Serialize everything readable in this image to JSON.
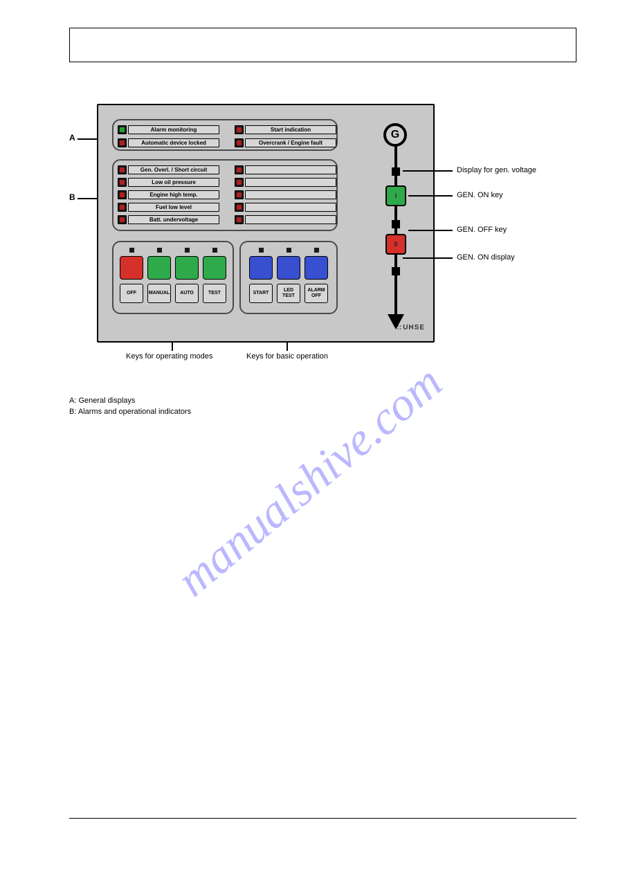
{
  "panel": {
    "section_a": {
      "left": [
        {
          "label": "Alarm monitoring",
          "led": "green"
        },
        {
          "label": "Automatic device locked",
          "led": "red"
        }
      ],
      "right": [
        {
          "label": "Start indication",
          "led": "red"
        },
        {
          "label": "Overcrank / Engine fault",
          "led": "red"
        }
      ]
    },
    "section_b": {
      "left": [
        {
          "label": "Gen. Overl. / Short circuit",
          "led": "red"
        },
        {
          "label": "Low oil pressure",
          "led": "red"
        },
        {
          "label": "Engine high temp.",
          "led": "red"
        },
        {
          "label": "Fuel low level",
          "led": "red"
        },
        {
          "label": "Batt. undervoltage",
          "led": "red"
        }
      ],
      "right": [
        {
          "label": "",
          "led": "red"
        },
        {
          "label": "",
          "led": "red"
        },
        {
          "label": "",
          "led": "red"
        },
        {
          "label": "",
          "led": "red"
        },
        {
          "label": "",
          "led": "red"
        }
      ]
    },
    "mode_keys": [
      {
        "label": "OFF",
        "color": "red"
      },
      {
        "label": "MANUAL",
        "color": "green"
      },
      {
        "label": "AUTO",
        "color": "green"
      },
      {
        "label": "TEST",
        "color": "green"
      }
    ],
    "basic_keys": [
      {
        "label": "START",
        "color": "blue"
      },
      {
        "label": "LED TEST",
        "color": "blue"
      },
      {
        "label": "ALARM OFF",
        "color": "blue"
      }
    ],
    "gen": {
      "head": "G",
      "on_label": "I",
      "off_label": "0"
    },
    "brand": "UHSE"
  },
  "side_labels": {
    "a": "A",
    "b": "B"
  },
  "callouts": {
    "c1": "Display for gen. voltage",
    "c2": "GEN. ON key",
    "c3": "GEN. OFF key",
    "c4": "GEN. ON display"
  },
  "bottom": {
    "modes": "Keys for operating modes",
    "basic": "Keys for basic operation"
  },
  "legend": {
    "a": "A: General displays",
    "b": "B: Alarms and operational indicators"
  },
  "watermark": "manualshive.com",
  "colors": {
    "panel_bg": "#c8c8c8",
    "green": "#2faa4a",
    "red": "#d5302a",
    "blue": "#384fcf",
    "led_green": "#1fa82e",
    "led_red": "#b51e1e"
  }
}
